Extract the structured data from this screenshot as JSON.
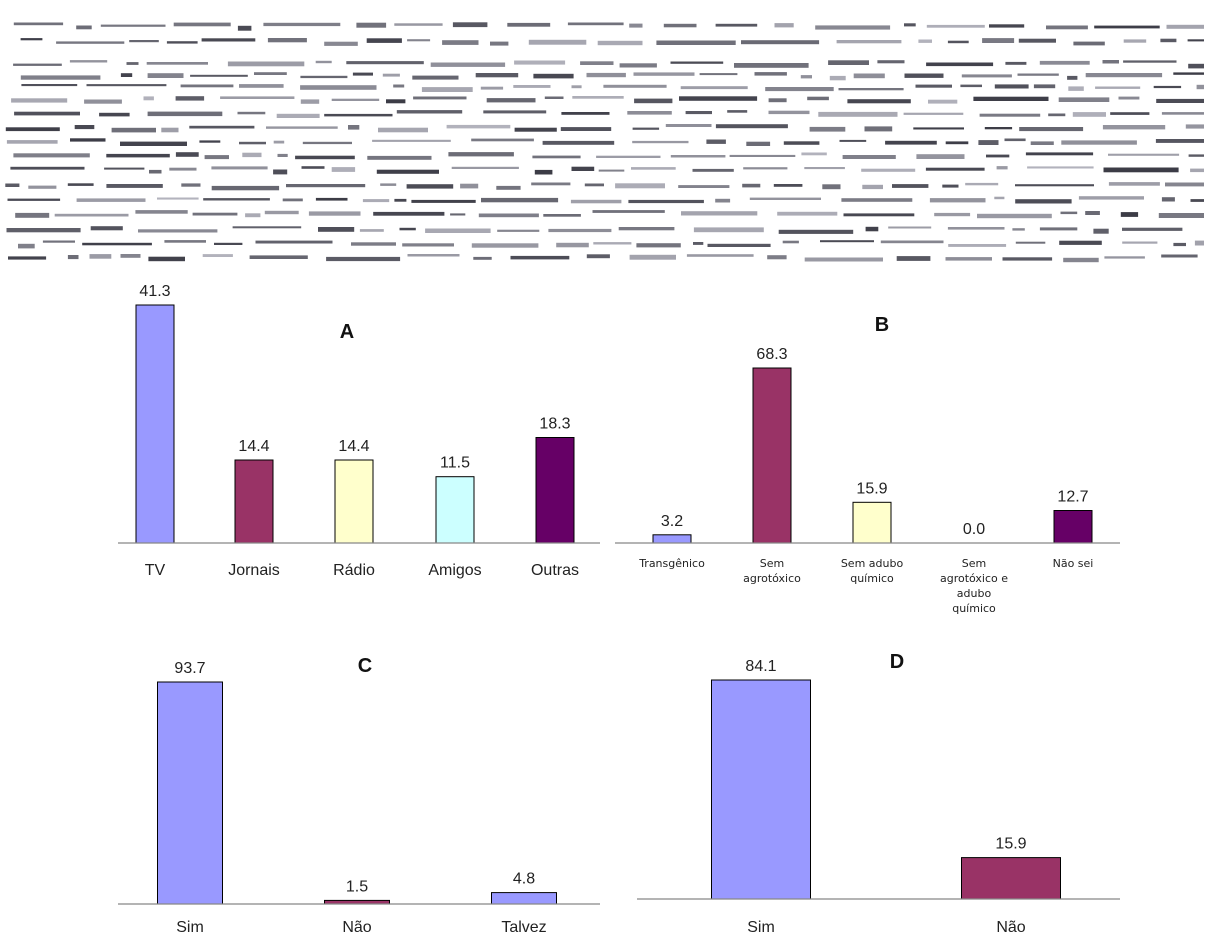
{
  "chart_data": [
    {
      "type": "bar",
      "panel": "A",
      "categories": [
        "TV",
        "Jornais",
        "Rádio",
        "Amigos",
        "Outras"
      ],
      "values": [
        41.3,
        14.4,
        14.4,
        11.5,
        18.3
      ],
      "value_labels": [
        "41.3",
        "14.4",
        "14.4",
        "11.5",
        "18.3"
      ],
      "colors": [
        "#9999ff",
        "#993366",
        "#ffffcc",
        "#ccffff",
        "#660066"
      ],
      "ylim": [
        0,
        41.3
      ],
      "grid": false
    },
    {
      "type": "bar",
      "panel": "B",
      "categories": [
        [
          "Transgênico"
        ],
        [
          "Sem",
          "agrotóxico"
        ],
        [
          "Sem adubo",
          "químico"
        ],
        [
          "Sem",
          "agrotóxico e",
          "adubo",
          "químico"
        ],
        [
          "Não sei"
        ]
      ],
      "values": [
        3.2,
        68.3,
        15.9,
        0.0,
        12.7
      ],
      "value_labels": [
        "3.2",
        "68.3",
        "15.9",
        "0.0",
        "12.7"
      ],
      "colors": [
        "#9999ff",
        "#993366",
        "#ffffcc",
        "#ccffff",
        "#660066"
      ],
      "ylim": [
        0,
        68.3
      ],
      "grid": false
    },
    {
      "type": "bar",
      "panel": "C",
      "categories": [
        "Sim",
        "Não",
        "Talvez"
      ],
      "values": [
        93.7,
        1.5,
        4.8
      ],
      "value_labels": [
        "93.7",
        "1.5",
        "4.8"
      ],
      "colors": [
        "#9999ff",
        "#993366",
        "#9999ff"
      ],
      "ylim": [
        0,
        93.7
      ],
      "grid": false
    },
    {
      "type": "bar",
      "panel": "D",
      "categories": [
        "Sim",
        "Não"
      ],
      "values": [
        84.1,
        15.9
      ],
      "value_labels": [
        "84.1",
        "15.9"
      ],
      "colors": [
        "#9999ff",
        "#993366"
      ],
      "ylim": [
        0,
        84.1
      ],
      "grid": false
    }
  ]
}
